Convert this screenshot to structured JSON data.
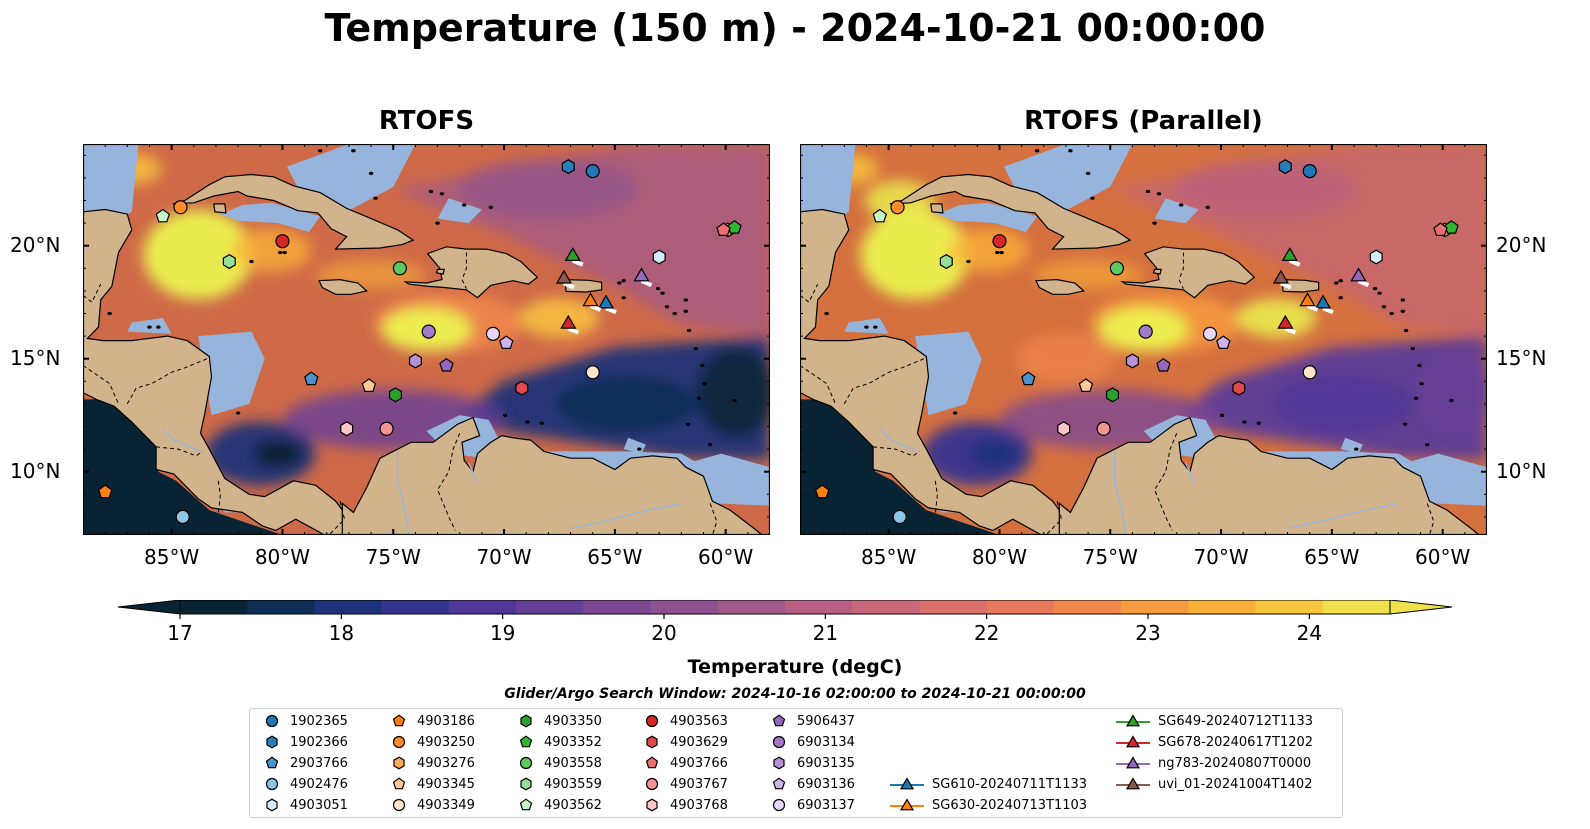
{
  "title": "Temperature (150 m) - 2024-10-21 00:00:00",
  "panels": [
    {
      "title": "RTOFS"
    },
    {
      "title": "RTOFS (Parallel)"
    }
  ],
  "axes": {
    "lon_ticks": [
      "85°W",
      "80°W",
      "75°W",
      "70°W",
      "65°W",
      "60°W"
    ],
    "lat_ticks": [
      "20°N",
      "15°N",
      "10°N"
    ],
    "lon_range": [
      -89,
      -58
    ],
    "lat_range": [
      7.2,
      24.5
    ]
  },
  "colorbar": {
    "label": "Temperature (degC)",
    "tick_labels": [
      "17",
      "18",
      "19",
      "20",
      "21",
      "22",
      "23",
      "24"
    ],
    "range": [
      17,
      24.5
    ],
    "extend": "both",
    "colors": [
      "#082333",
      "#0d2d55",
      "#1c3379",
      "#37348f",
      "#4f3898",
      "#663f98",
      "#7c4894",
      "#8f518f",
      "#a2598a",
      "#b76083",
      "#c9687a",
      "#da6f6c",
      "#e8795c",
      "#f2884c",
      "#f79b40",
      "#faaf38",
      "#f9c63e",
      "#f0e04c"
    ]
  },
  "search_window": "Glider/Argo Search Window: 2024-10-16 02:00:00 to 2024-10-21 00:00:00",
  "colors": {
    "land": "#d2b48c",
    "shelf": "#96b4dc",
    "warm_core": "#ebf250"
  },
  "legend": [
    {
      "label": "1902365",
      "marker": "circle",
      "color": "#1f77b4"
    },
    {
      "label": "1902366",
      "marker": "hexagon",
      "color": "#2a7dbb"
    },
    {
      "label": "2903766",
      "marker": "pentagon",
      "color": "#4a93cc"
    },
    {
      "label": "4902476",
      "marker": "circle",
      "color": "#8ec6ea"
    },
    {
      "label": "4903051",
      "marker": "hexagon",
      "color": "#d2ecfb"
    },
    {
      "label": "4903186",
      "marker": "pentagon",
      "color": "#ff7f0e"
    },
    {
      "label": "4903250",
      "marker": "circle",
      "color": "#ff8c2a"
    },
    {
      "label": "4903276",
      "marker": "hexagon",
      "color": "#ffa95e"
    },
    {
      "label": "4903345",
      "marker": "pentagon",
      "color": "#ffc896"
    },
    {
      "label": "4903349",
      "marker": "circle",
      "color": "#ffe5c8"
    },
    {
      "label": "4903350",
      "marker": "hexagon",
      "color": "#2ca02c"
    },
    {
      "label": "4903352",
      "marker": "pentagon",
      "color": "#2fb52f"
    },
    {
      "label": "4903558",
      "marker": "circle",
      "color": "#5ec95e"
    },
    {
      "label": "4903559",
      "marker": "hexagon",
      "color": "#98e098"
    },
    {
      "label": "4903562",
      "marker": "pentagon",
      "color": "#c8f5c8"
    },
    {
      "label": "4903563",
      "marker": "circle",
      "color": "#d62728"
    },
    {
      "label": "4903629",
      "marker": "hexagon",
      "color": "#e0484a"
    },
    {
      "label": "4903766",
      "marker": "pentagon",
      "color": "#ec6e70"
    },
    {
      "label": "4903767",
      "marker": "circle",
      "color": "#f59494"
    },
    {
      "label": "4903768",
      "marker": "hexagon",
      "color": "#fcc6c6"
    },
    {
      "label": "5906437",
      "marker": "pentagon",
      "color": "#9467bd"
    },
    {
      "label": "6903134",
      "marker": "circle",
      "color": "#a27ac8"
    },
    {
      "label": "6903135",
      "marker": "hexagon",
      "color": "#b592d8"
    },
    {
      "label": "6903136",
      "marker": "pentagon",
      "color": "#ceb3ea"
    },
    {
      "label": "6903137",
      "marker": "circle",
      "color": "#e8d6f7"
    },
    {
      "label": "SG610-20240711T1133",
      "marker": "triangle",
      "color": "#1f77b4"
    },
    {
      "label": "SG630-20240713T1103",
      "marker": "triangle",
      "color": "#ff7f0e"
    },
    {
      "label": "SG649-20240712T1133",
      "marker": "triangle",
      "color": "#2ca02c"
    },
    {
      "label": "SG678-20240617T1202",
      "marker": "triangle",
      "color": "#d62728"
    },
    {
      "label": "ng783-20240807T0000",
      "marker": "triangle",
      "color": "#9467bd"
    },
    {
      "label": "uvi_01-20241004T1402",
      "marker": "triangle",
      "color": "#8c564b"
    }
  ],
  "observations": [
    {
      "id": "1902365",
      "lon": -66.0,
      "lat": 23.3
    },
    {
      "id": "1902366",
      "lon": -67.1,
      "lat": 23.5
    },
    {
      "id": "2903766",
      "lon": -78.7,
      "lat": 14.1
    },
    {
      "id": "4902476",
      "lon": -84.5,
      "lat": 8.0
    },
    {
      "id": "4903051",
      "lon": -63.0,
      "lat": 19.5
    },
    {
      "id": "4903186",
      "lon": -88.0,
      "lat": 9.1
    },
    {
      "id": "4903250",
      "lon": -84.6,
      "lat": 21.7
    },
    {
      "id": "4903276",
      "lon": -59.9,
      "lat": 20.7
    },
    {
      "id": "4903345",
      "lon": -76.1,
      "lat": 13.8
    },
    {
      "id": "4903349",
      "lon": -66.0,
      "lat": 14.4
    },
    {
      "id": "4903350",
      "lon": -74.9,
      "lat": 13.4
    },
    {
      "id": "4903352",
      "lon": -59.6,
      "lat": 20.8
    },
    {
      "id": "4903558",
      "lon": -74.7,
      "lat": 19.0
    },
    {
      "id": "4903559",
      "lon": -82.4,
      "lat": 19.3
    },
    {
      "id": "4903562",
      "lon": -85.4,
      "lat": 21.3
    },
    {
      "id": "4903563",
      "lon": -80.0,
      "lat": 20.2
    },
    {
      "id": "4903629",
      "lon": -69.2,
      "lat": 13.7
    },
    {
      "id": "4903766",
      "lon": -60.1,
      "lat": 20.7
    },
    {
      "id": "4903767",
      "lon": -75.3,
      "lat": 11.9
    },
    {
      "id": "4903768",
      "lon": -77.1,
      "lat": 11.9
    },
    {
      "id": "5906437",
      "lon": -72.6,
      "lat": 14.7
    },
    {
      "id": "6903134",
      "lon": -73.4,
      "lat": 16.2
    },
    {
      "id": "6903135",
      "lon": -74.0,
      "lat": 14.9
    },
    {
      "id": "6903136",
      "lon": -69.9,
      "lat": 15.7
    },
    {
      "id": "6903137",
      "lon": -70.5,
      "lat": 16.1
    },
    {
      "id": "SG610-20240711T1133",
      "lon": -65.4,
      "lat": 17.5
    },
    {
      "id": "SG630-20240713T1103",
      "lon": -66.1,
      "lat": 17.6
    },
    {
      "id": "SG649-20240712T1133",
      "lon": -66.9,
      "lat": 19.6
    },
    {
      "id": "SG678-20240617T1202",
      "lon": -67.1,
      "lat": 16.6
    },
    {
      "id": "ng783-20240807T0000",
      "lon": -63.8,
      "lat": 18.7
    },
    {
      "id": "uvi_01-20241004T1402",
      "lon": -67.3,
      "lat": 18.6
    }
  ]
}
